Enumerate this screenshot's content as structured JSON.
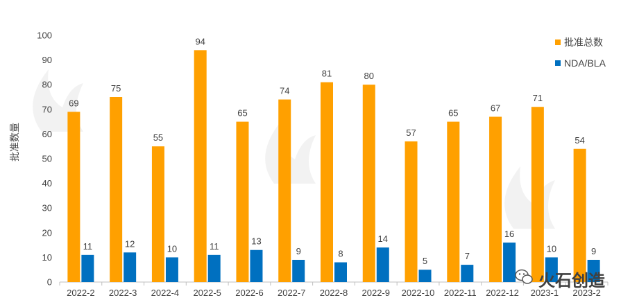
{
  "chart_data": {
    "type": "bar",
    "title": "",
    "xlabel": "",
    "ylabel": "批准数量",
    "ylim": [
      0,
      100
    ],
    "yticks": [
      0,
      10,
      20,
      30,
      40,
      50,
      60,
      70,
      80,
      90,
      100
    ],
    "categories": [
      "2022-2",
      "2022-3",
      "2022-4",
      "2022-5",
      "2022-6",
      "2022-7",
      "2022-8",
      "2022-9",
      "2022-10",
      "2022-11",
      "2022-12",
      "2023-1",
      "2023-2"
    ],
    "series": [
      {
        "name": "批准总数",
        "color": "#FFA000",
        "values": [
          69,
          75,
          55,
          94,
          65,
          74,
          81,
          80,
          57,
          65,
          67,
          71,
          54
        ]
      },
      {
        "name": "NDA/BLA",
        "color": "#0070C0",
        "values": [
          11,
          12,
          10,
          11,
          13,
          9,
          8,
          14,
          5,
          7,
          16,
          10,
          9
        ]
      }
    ],
    "legend_position": "top-right",
    "grid": false,
    "data_labels": true
  },
  "watermark": {
    "text": "火石创造",
    "icon": "wechat-icon"
  }
}
